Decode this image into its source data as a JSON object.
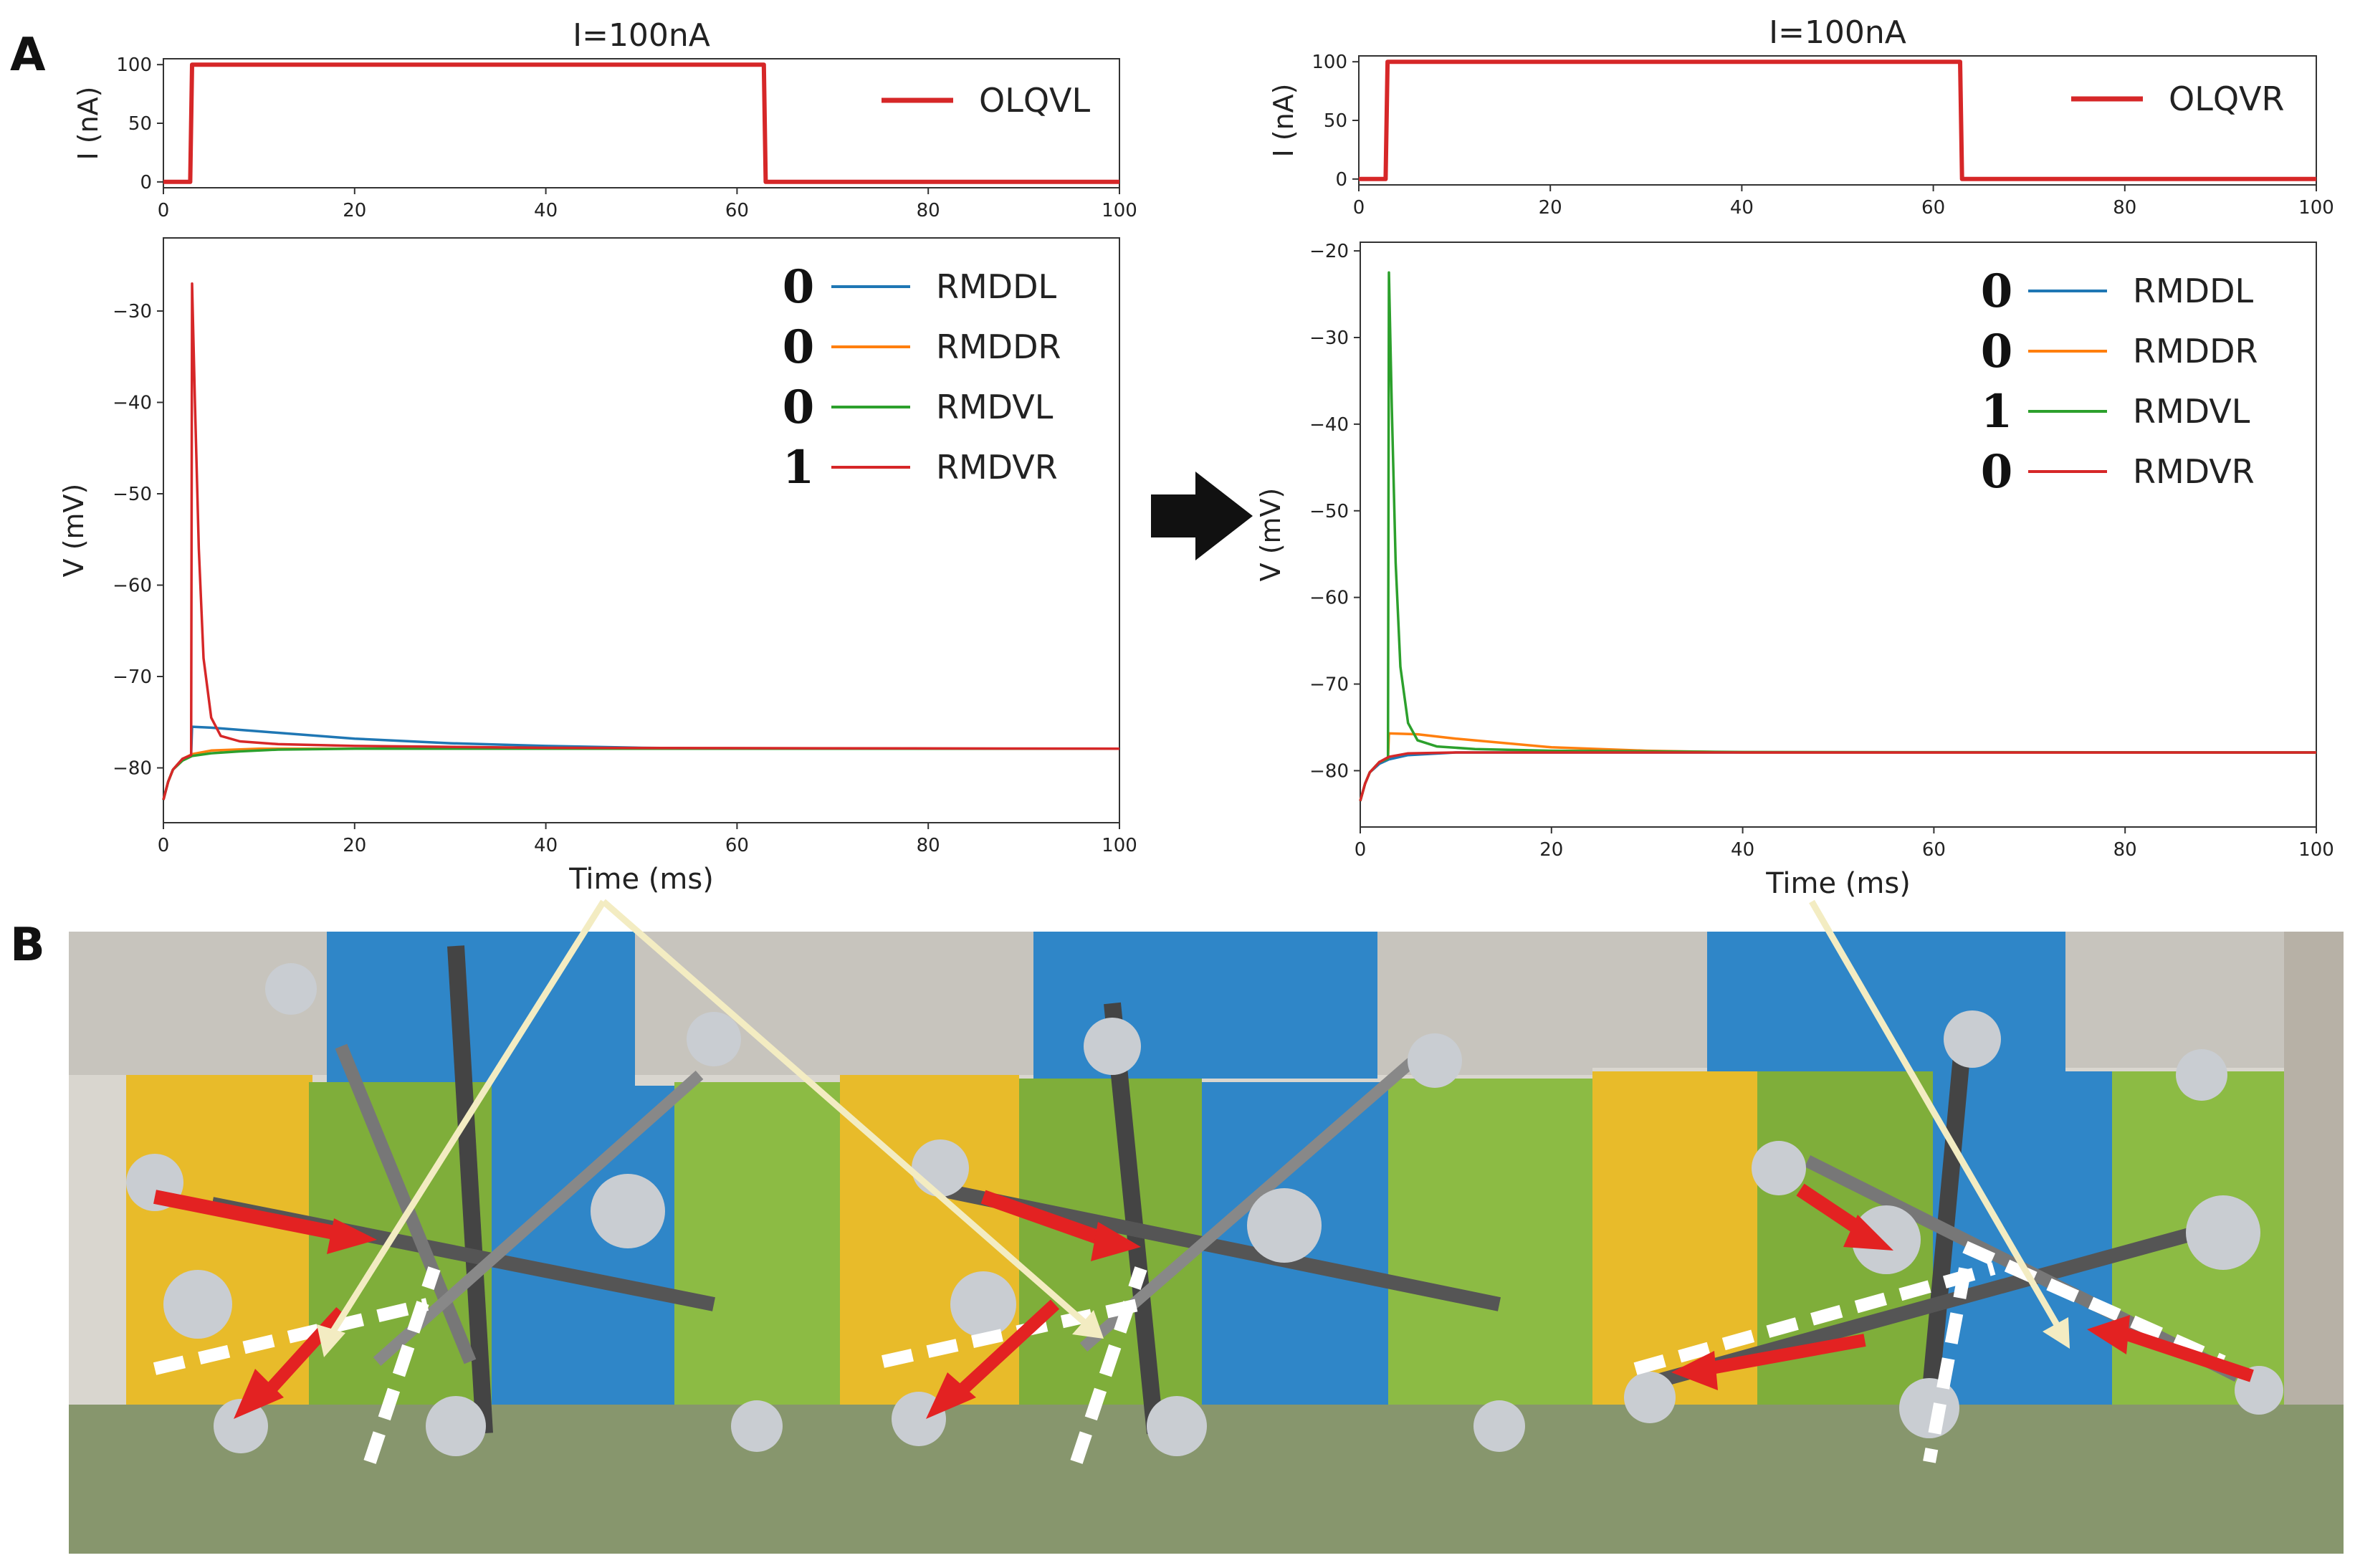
{
  "panel_labels": {
    "a": "A",
    "b": "B"
  },
  "colors": {
    "stimulus": "#d62728",
    "RMDDL": "#1f77b4",
    "RMDDR": "#ff7f0e",
    "RMDVL": "#2ca02c",
    "RMDVR": "#d62728",
    "frame": "#333333",
    "arrow_block": "#111111",
    "beam": "#f3ecc2",
    "force_arrow": "#e32222"
  },
  "chart_data": [
    {
      "type": "line",
      "panel": "left-stimulus",
      "title": "I=100nA",
      "xlabel": "",
      "ylabel": "I (nA)",
      "xlim": [
        0,
        100
      ],
      "ylim": [
        -5,
        105
      ],
      "x_ticks": [
        "0",
        "20",
        "40",
        "60",
        "80",
        "100"
      ],
      "y_ticks": [
        "0",
        "50",
        "100"
      ],
      "legend_position": "top-right",
      "series": [
        {
          "name": "OLQVL",
          "color": "#d62728",
          "points": [
            [
              0,
              0
            ],
            [
              2.8,
              0
            ],
            [
              3,
              100
            ],
            [
              62.8,
              100
            ],
            [
              63,
              0
            ],
            [
              100,
              0
            ]
          ]
        }
      ]
    },
    {
      "type": "line",
      "panel": "right-stimulus",
      "title": "I=100nA",
      "xlabel": "",
      "ylabel": "I (nA)",
      "xlim": [
        0,
        100
      ],
      "ylim": [
        -5,
        105
      ],
      "x_ticks": [
        "0",
        "20",
        "40",
        "60",
        "80",
        "100"
      ],
      "y_ticks": [
        "0",
        "50",
        "100"
      ],
      "legend_position": "top-right",
      "series": [
        {
          "name": "OLQVR",
          "color": "#d62728",
          "points": [
            [
              0,
              0
            ],
            [
              2.8,
              0
            ],
            [
              3,
              100
            ],
            [
              62.8,
              100
            ],
            [
              63,
              0
            ],
            [
              100,
              0
            ]
          ]
        }
      ]
    },
    {
      "type": "line",
      "panel": "left-voltage",
      "title": "",
      "xlabel": "Time (ms)",
      "ylabel": "V (mV)",
      "xlim": [
        0,
        100
      ],
      "ylim": [
        -86,
        -22
      ],
      "x_ticks": [
        "0",
        "20",
        "40",
        "60",
        "80",
        "100"
      ],
      "y_ticks": [
        "−30",
        "−40",
        "−50",
        "−60",
        "−70",
        "−80"
      ],
      "y_tick_values": [
        -30,
        -40,
        -50,
        -60,
        -70,
        -80
      ],
      "legend_position": "top-right",
      "series": [
        {
          "name": "RMDDL",
          "flag": "0",
          "color": "#1f77b4",
          "points": [
            [
              0,
              -83.5
            ],
            [
              0.5,
              -81.5
            ],
            [
              1,
              -80.2
            ],
            [
              2,
              -79
            ],
            [
              2.9,
              -78.6
            ],
            [
              3,
              -75.5
            ],
            [
              5,
              -75.6
            ],
            [
              10,
              -76
            ],
            [
              20,
              -76.8
            ],
            [
              30,
              -77.3
            ],
            [
              40,
              -77.6
            ],
            [
              50,
              -77.8
            ],
            [
              60,
              -77.9
            ],
            [
              100,
              -77.9
            ]
          ]
        },
        {
          "name": "RMDDR",
          "flag": "0",
          "color": "#ff7f0e",
          "points": [
            [
              0,
              -83.5
            ],
            [
              0.5,
              -81.5
            ],
            [
              1,
              -80.2
            ],
            [
              2,
              -79
            ],
            [
              3,
              -78.5
            ],
            [
              5,
              -78.1
            ],
            [
              10,
              -77.9
            ],
            [
              100,
              -77.9
            ]
          ]
        },
        {
          "name": "RMDVL",
          "flag": "0",
          "color": "#2ca02c",
          "points": [
            [
              0,
              -83.5
            ],
            [
              0.5,
              -81.5
            ],
            [
              1,
              -80.2
            ],
            [
              2,
              -79.2
            ],
            [
              3,
              -78.7
            ],
            [
              5,
              -78.4
            ],
            [
              8,
              -78.2
            ],
            [
              12,
              -78
            ],
            [
              20,
              -77.9
            ],
            [
              100,
              -77.9
            ]
          ]
        },
        {
          "name": "RMDVR",
          "flag": "1",
          "color": "#d62728",
          "points": [
            [
              0,
              -83.5
            ],
            [
              0.5,
              -81.5
            ],
            [
              1,
              -80.2
            ],
            [
              2,
              -79
            ],
            [
              2.9,
              -78.6
            ],
            [
              3,
              -27
            ],
            [
              3.3,
              -40
            ],
            [
              3.7,
              -56
            ],
            [
              4.2,
              -68
            ],
            [
              5,
              -74.5
            ],
            [
              6,
              -76.5
            ],
            [
              8,
              -77.1
            ],
            [
              12,
              -77.4
            ],
            [
              20,
              -77.6
            ],
            [
              40,
              -77.8
            ],
            [
              100,
              -77.9
            ]
          ]
        }
      ]
    },
    {
      "type": "line",
      "panel": "right-voltage",
      "title": "",
      "xlabel": "Time (ms)",
      "ylabel": "V (mV)",
      "xlim": [
        0,
        100
      ],
      "ylim": [
        -86.5,
        -19
      ],
      "x_ticks": [
        "0",
        "20",
        "40",
        "60",
        "80",
        "100"
      ],
      "y_ticks": [
        "−20",
        "−30",
        "−40",
        "−50",
        "−60",
        "−70",
        "−80"
      ],
      "y_tick_values": [
        -20,
        -30,
        -40,
        -50,
        -60,
        -70,
        -80
      ],
      "legend_position": "top-right",
      "series": [
        {
          "name": "RMDDL",
          "flag": "0",
          "color": "#1f77b4",
          "points": [
            [
              0,
              -83.5
            ],
            [
              0.5,
              -81.5
            ],
            [
              1,
              -80.2
            ],
            [
              2,
              -79.2
            ],
            [
              3,
              -78.7
            ],
            [
              5,
              -78.2
            ],
            [
              10,
              -77.9
            ],
            [
              100,
              -77.9
            ]
          ]
        },
        {
          "name": "RMDDR",
          "flag": "0",
          "color": "#ff7f0e",
          "points": [
            [
              0,
              -83.5
            ],
            [
              0.5,
              -81.5
            ],
            [
              1,
              -80.2
            ],
            [
              2,
              -79
            ],
            [
              2.9,
              -78.6
            ],
            [
              3,
              -75.7
            ],
            [
              6,
              -75.8
            ],
            [
              10,
              -76.3
            ],
            [
              20,
              -77.3
            ],
            [
              30,
              -77.7
            ],
            [
              40,
              -77.9
            ],
            [
              100,
              -77.9
            ]
          ]
        },
        {
          "name": "RMDVL",
          "flag": "1",
          "color": "#2ca02c",
          "points": [
            [
              0,
              -83.5
            ],
            [
              0.5,
              -81.5
            ],
            [
              1,
              -80.2
            ],
            [
              2,
              -79
            ],
            [
              2.9,
              -78.6
            ],
            [
              3,
              -22.5
            ],
            [
              3.3,
              -38
            ],
            [
              3.7,
              -56
            ],
            [
              4.2,
              -68
            ],
            [
              5,
              -74.5
            ],
            [
              6,
              -76.5
            ],
            [
              8,
              -77.2
            ],
            [
              12,
              -77.5
            ],
            [
              20,
              -77.7
            ],
            [
              40,
              -77.85
            ],
            [
              100,
              -77.9
            ]
          ]
        },
        {
          "name": "RMDVR",
          "flag": "0",
          "color": "#d62728",
          "points": [
            [
              0,
              -83.5
            ],
            [
              0.5,
              -81.5
            ],
            [
              1,
              -80.2
            ],
            [
              2,
              -79
            ],
            [
              3,
              -78.4
            ],
            [
              5,
              -78
            ],
            [
              10,
              -77.9
            ],
            [
              100,
              -77.9
            ]
          ]
        }
      ]
    }
  ]
}
